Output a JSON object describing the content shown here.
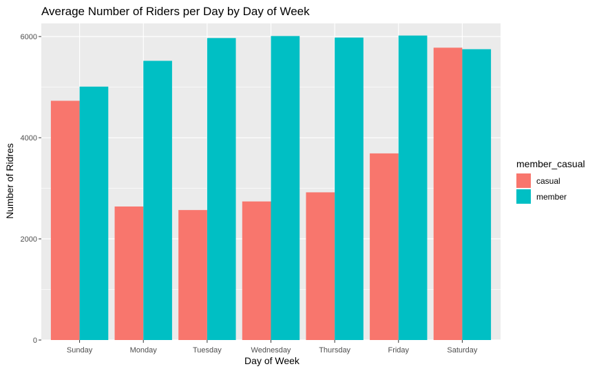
{
  "chart_data": {
    "type": "bar",
    "title": "Average Number of Riders per Day by Day of Week",
    "xlabel": "Day of Week",
    "ylabel": "Number of Ridres",
    "categories": [
      "Sunday",
      "Monday",
      "Tuesday",
      "Wednesday",
      "Thursday",
      "Friday",
      "Saturday"
    ],
    "series": [
      {
        "name": "casual",
        "color": "#F8766D",
        "values": [
          4730,
          2640,
          2570,
          2740,
          2920,
          3690,
          5780
        ]
      },
      {
        "name": "member",
        "color": "#00BFC4",
        "values": [
          5010,
          5520,
          5970,
          6010,
          5980,
          6020,
          5750
        ]
      }
    ],
    "ylim": [
      0,
      6260
    ],
    "yticks": [
      0,
      2000,
      4000,
      6000
    ],
    "legend": {
      "title": "member_casual",
      "position": "right"
    },
    "panel_background": "#EBEBEB",
    "grid_color": "#FFFFFF",
    "grid": true
  }
}
